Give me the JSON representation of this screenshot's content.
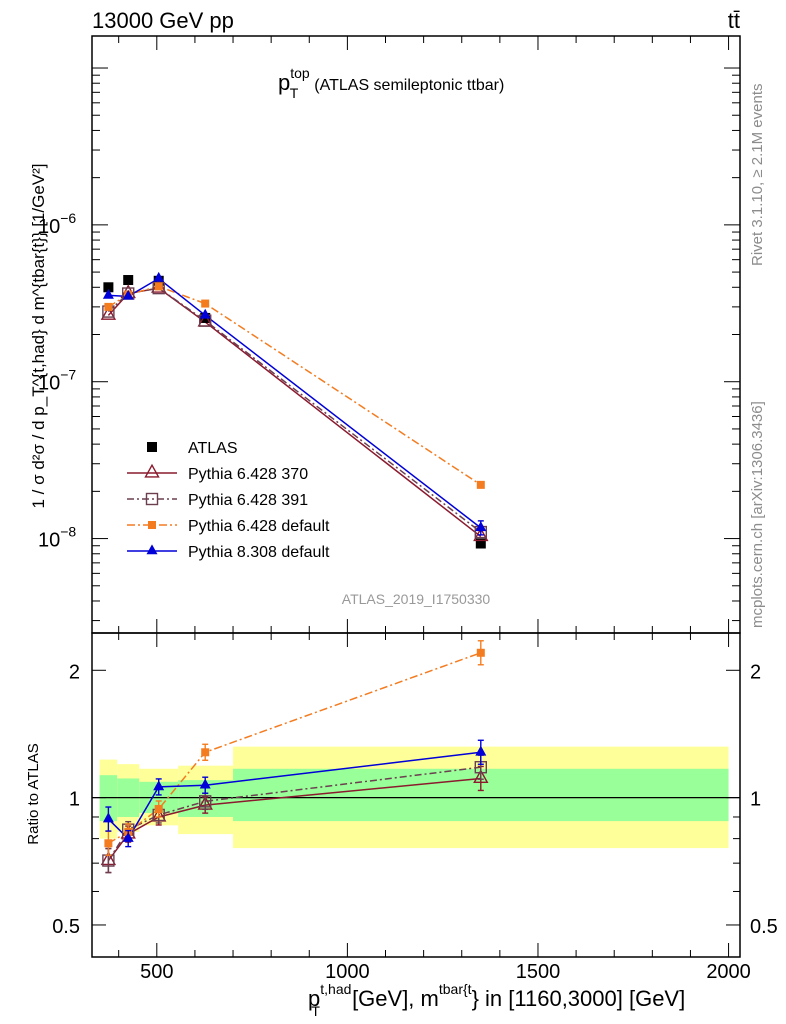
{
  "header": {
    "left": "13000 GeV pp",
    "right": "tt̄"
  },
  "side_labels": {
    "rivet": "Rivet 3.1.10, ≥ 2.1M events",
    "mcplots": "mcplots.cern.ch [arXiv:1306.3436]"
  },
  "title": {
    "main": "p",
    "sup": "top",
    "sub": "T",
    "rest": "(ATLAS semileptonic ttbar)"
  },
  "analysis_id": "ATLAS_2019_I1750330",
  "ylabel_main": "1 / σ d²σ / d p_T^{t,had} d m^{tbar{t}} [1/GeV²]",
  "ylabel_ratio": "Ratio to ATLAS",
  "xlabel": {
    "p": "p",
    "p_sup": "t,had",
    "p_sub": "T",
    "mid": " [GeV], m",
    "m_sup": "tbar{t",
    "tail": "} in [1160,3000] [GeV]"
  },
  "legend": [
    {
      "label": "ATLAS"
    },
    {
      "label": "Pythia 6.428 370"
    },
    {
      "label": "Pythia 6.428 391"
    },
    {
      "label": "Pythia 6.428 default"
    },
    {
      "label": "Pythia 8.308 default"
    }
  ],
  "colors": {
    "atlas": "#000000",
    "p370": "#8b1a2e",
    "p391": "#6b3f50",
    "p6def": "#f47c20",
    "p8def": "#0000d8",
    "band_inner": "#99ff99",
    "band_outer": "#ffff99"
  },
  "chart_data": [
    {
      "type": "line",
      "yscale": "log",
      "xlim": [
        330,
        2030
      ],
      "ylim": [
        2.5e-09,
        1.6e-05
      ],
      "x_ticks": [
        500,
        1000,
        1500,
        2000
      ],
      "x_tick_labels": [
        "500",
        "1000",
        "1500",
        "2000"
      ],
      "y_ticks": [
        1e-08,
        1e-07,
        1e-06
      ],
      "y_tick_labels": [
        {
          "base": "10",
          "exp": "−8"
        },
        {
          "base": "10",
          "exp": "−7"
        },
        {
          "base": "10",
          "exp": "−6"
        }
      ],
      "x": [
        373,
        425,
        505,
        627,
        1350
      ],
      "series": [
        {
          "name": "ATLAS",
          "values": [
            4e-07,
            4.45e-07,
            4.4e-07,
            2.55e-07,
            9.3e-09
          ]
        },
        {
          "name": "Pythia 6.428 370",
          "values": [
            2.65e-07,
            3.65e-07,
            3.95e-07,
            2.4e-07,
            1.03e-08
          ]
        },
        {
          "name": "Pythia 6.428 391",
          "values": [
            2.8e-07,
            3.65e-07,
            3.95e-07,
            2.45e-07,
            1.1e-08
          ]
        },
        {
          "name": "Pythia 6.428 default",
          "values": [
            3e-07,
            3.6e-07,
            4.05e-07,
            3.15e-07,
            2.2e-08
          ]
        },
        {
          "name": "Pythia 8.308 default",
          "values": [
            3.55e-07,
            3.5e-07,
            4.55e-07,
            2.65e-07,
            1.17e-08
          ]
        }
      ]
    },
    {
      "type": "line",
      "yscale": "log",
      "xlim": [
        330,
        2030
      ],
      "ylim": [
        0.42,
        2.45
      ],
      "y_ticks": [
        0.5,
        1,
        2
      ],
      "y_tick_labels": [
        "0.5",
        "1",
        "2"
      ],
      "x": [
        373,
        425,
        505,
        627,
        1350
      ],
      "bins": [
        [
          350,
          396
        ],
        [
          396,
          454
        ],
        [
          454,
          556
        ],
        [
          556,
          700
        ],
        [
          700,
          2000
        ]
      ],
      "band_inner": [
        [
          0.88,
          1.13
        ],
        [
          0.9,
          1.11
        ],
        [
          0.92,
          1.09
        ],
        [
          0.9,
          1.1
        ],
        [
          0.88,
          1.17
        ]
      ],
      "band_outer": [
        [
          0.8,
          1.23
        ],
        [
          0.83,
          1.2
        ],
        [
          0.86,
          1.17
        ],
        [
          0.82,
          1.19
        ],
        [
          0.76,
          1.32
        ]
      ],
      "series": [
        {
          "name": "Pythia 6.428 370",
          "values": [
            0.71,
            0.82,
            0.9,
            0.96,
            1.11
          ]
        },
        {
          "name": "Pythia 6.428 391",
          "values": [
            0.71,
            0.84,
            0.91,
            0.98,
            1.18
          ]
        },
        {
          "name": "Pythia 6.428 default",
          "values": [
            0.78,
            0.83,
            0.94,
            1.28,
            2.2
          ]
        },
        {
          "name": "Pythia 8.308 default",
          "values": [
            0.89,
            0.8,
            1.06,
            1.07,
            1.28
          ]
        }
      ]
    }
  ]
}
